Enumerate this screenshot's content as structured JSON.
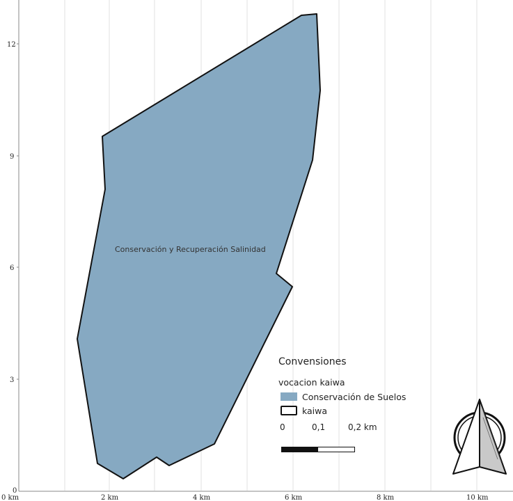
{
  "map": {
    "polygon_label": "Conservación y Recuperación Salinidad",
    "x_ticks": [
      "0 km",
      "2 km",
      "4 km",
      "6 km",
      "8 km",
      "10 km"
    ],
    "y_ticks": [
      "0",
      "3",
      "6",
      "9",
      "12"
    ],
    "fill_color": "#86a9c2",
    "outline_color": "#111111"
  },
  "legend": {
    "title": "Convensiones",
    "subtitle": "vocacion kaiwa",
    "items": [
      {
        "label": "Conservación de Suelos",
        "symbol": "fill",
        "color": "#86a9c2"
      },
      {
        "label": "kaiwa",
        "symbol": "outline",
        "color": "#111111"
      }
    ]
  },
  "scale_bar": {
    "labels": [
      "0",
      "0,1",
      "0,2 km"
    ]
  },
  "north_arrow": {
    "icon": "north-arrow-icon"
  }
}
